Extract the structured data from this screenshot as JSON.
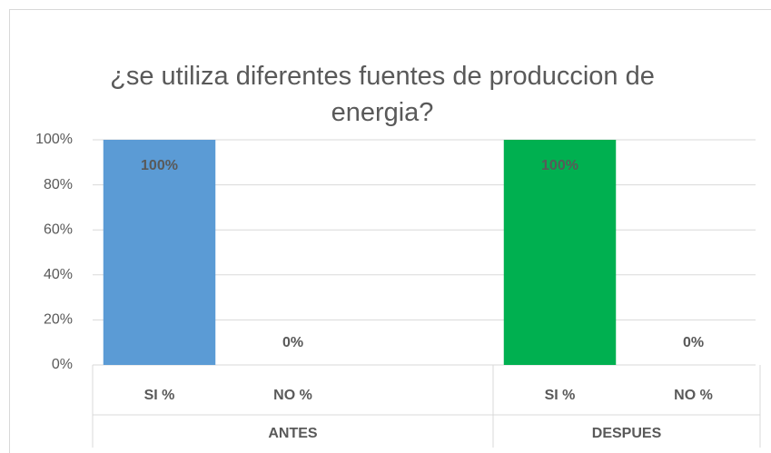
{
  "chart_data": {
    "type": "bar",
    "title": "¿se utiliza diferentes fuentes de produccion de energia?",
    "groups": [
      {
        "name": "ANTES",
        "color": "#5b9bd5",
        "categories": [
          "SI %",
          "NO %",
          null
        ],
        "values": [
          100,
          0,
          null
        ],
        "value_labels": [
          "100%",
          "0%",
          null
        ]
      },
      {
        "name": "DESPUES",
        "color": "#00b050",
        "categories": [
          "SI %",
          "NO %"
        ],
        "values": [
          100,
          0
        ],
        "value_labels": [
          "100%",
          "0%"
        ]
      }
    ],
    "ylim": [
      0,
      100
    ],
    "yticks": [
      {
        "value": 0,
        "label": "0%"
      },
      {
        "value": 20,
        "label": "20%"
      },
      {
        "value": 40,
        "label": "40%"
      },
      {
        "value": 60,
        "label": "60%"
      },
      {
        "value": 80,
        "label": "80%"
      },
      {
        "value": 100,
        "label": "100%"
      }
    ],
    "grid": true
  }
}
